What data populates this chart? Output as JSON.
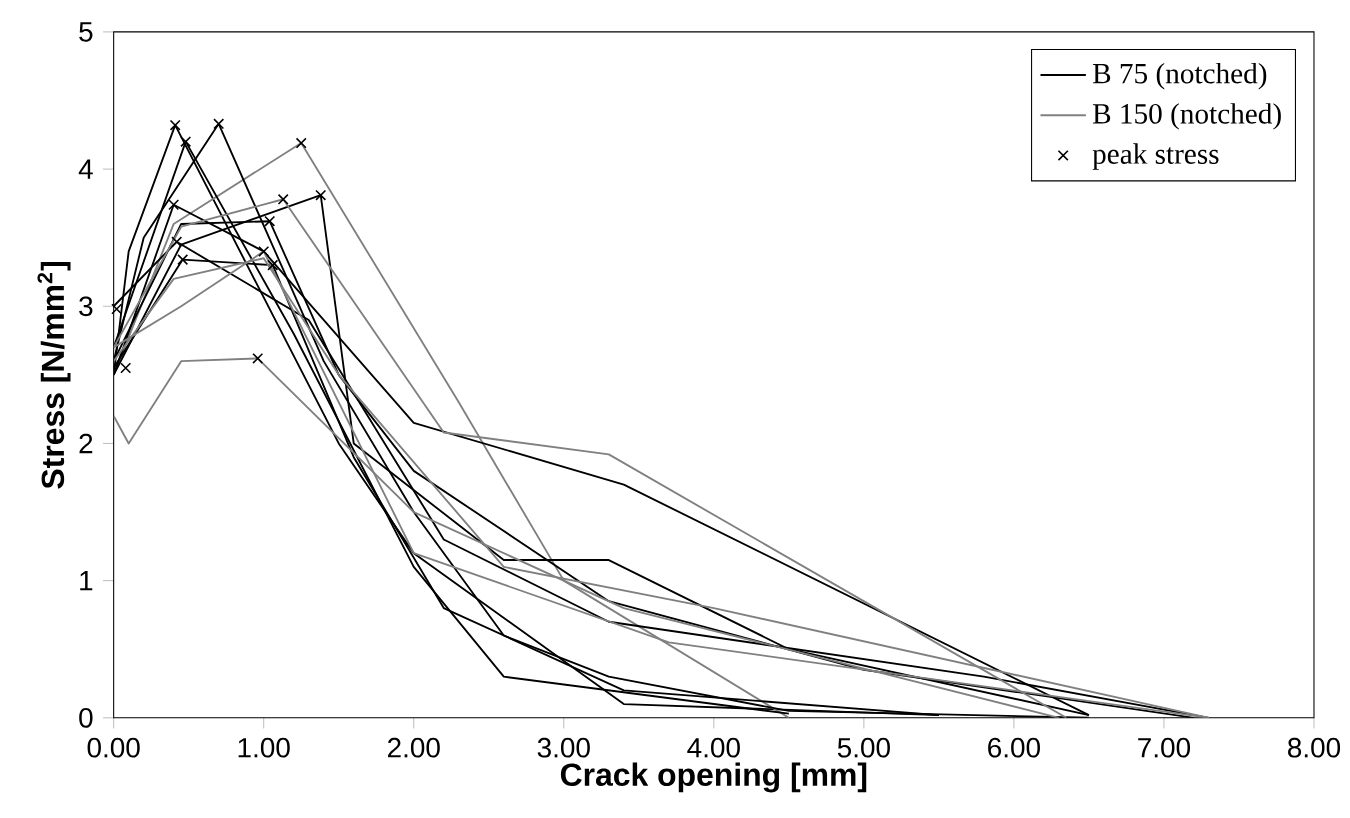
{
  "chart_data": {
    "type": "line",
    "xlabel": "Crack opening [mm]",
    "ylabel": "Stress [N/mm$^{2}$]",
    "xlim": [
      0,
      8
    ],
    "ylim": [
      0,
      5
    ],
    "xticks": [
      {
        "value": 0,
        "label": "0.00"
      },
      {
        "value": 1,
        "label": "1.00"
      },
      {
        "value": 2,
        "label": "2.00"
      },
      {
        "value": 3,
        "label": "3.00"
      },
      {
        "value": 4,
        "label": "4.00"
      },
      {
        "value": 5,
        "label": "5.00"
      },
      {
        "value": 6,
        "label": "6.00"
      },
      {
        "value": 7,
        "label": "7.00"
      },
      {
        "value": 8,
        "label": "8.00"
      }
    ],
    "yticks": [
      0,
      1,
      2,
      3,
      4,
      5
    ],
    "grid": false,
    "legend": "top right",
    "line_style": "solid",
    "series": [
      {
        "name": "B 75 (notched)",
        "color": "#000000",
        "x": [
          0,
          0.1,
          0.41,
          1.5,
          2.0,
          3.4,
          5.5
        ],
        "values": [
          2.5,
          3.4,
          4.32,
          2.0,
          1.2,
          0.1,
          0.02
        ]
      },
      {
        "name": "B 150 (notched)",
        "color": "#808080",
        "x": [
          0,
          0.4,
          1.25,
          2.3,
          3.0,
          4.5
        ],
        "values": [
          2.5,
          3.6,
          4.19,
          2.3,
          1.0,
          0.0
        ]
      },
      {
        "color": "#000000",
        "x": [
          0,
          0.2,
          0.7,
          1.4,
          2.0,
          2.6,
          3.3,
          4.5,
          6.5
        ],
        "values": [
          2.6,
          3.5,
          4.33,
          2.6,
          1.5,
          0.6,
          0.3,
          0.05,
          0.0
        ]
      },
      {
        "color": "#000000",
        "x": [
          0,
          0.48,
          1.2,
          2.0,
          2.6,
          4.5
        ],
        "values": [
          2.7,
          4.2,
          2.8,
          1.1,
          0.3,
          0.03
        ]
      },
      {
        "color": "#000000",
        "x": [
          0,
          0.4,
          1.0,
          2.0,
          3.4,
          6.5
        ],
        "values": [
          2.5,
          3.74,
          3.4,
          2.15,
          1.7,
          0.02
        ]
      },
      {
        "color": "#000000",
        "x": [
          0,
          0.45,
          1.04,
          1.5,
          2.0,
          3.3,
          5.0,
          7.2
        ],
        "values": [
          2.6,
          3.6,
          3.62,
          2.5,
          1.8,
          0.85,
          0.35,
          0.0
        ]
      },
      {
        "color": "#000000",
        "x": [
          0,
          0.45,
          1.38,
          1.6,
          2.6,
          3.3,
          4.5,
          6.5
        ],
        "values": [
          2.5,
          3.45,
          3.81,
          2.0,
          1.15,
          1.15,
          0.5,
          0.02
        ]
      },
      {
        "color": "#000000",
        "x": [
          0,
          0.46,
          1.06,
          1.6,
          2.2,
          3.4,
          5.5
        ],
        "values": [
          2.55,
          3.34,
          3.3,
          1.9,
          0.8,
          0.2,
          0.02
        ]
      },
      {
        "color": "#000000",
        "x": [
          0,
          0.42,
          1.3,
          2.2,
          3.3,
          5.8,
          7.3
        ],
        "values": [
          3.0,
          3.47,
          2.9,
          1.3,
          0.7,
          0.3,
          0.0
        ]
      },
      {
        "color": "#808080",
        "x": [
          0,
          0.45,
          1.13,
          2.2,
          3.3,
          6.35
        ],
        "values": [
          2.7,
          3.58,
          3.78,
          2.08,
          1.92,
          0.0
        ]
      },
      {
        "color": "#808080",
        "x": [
          0,
          0.1,
          0.45,
          0.96,
          2.0,
          3.4,
          6.3
        ],
        "values": [
          2.2,
          2.0,
          2.6,
          2.62,
          1.5,
          0.8,
          0.0
        ]
      },
      {
        "color": "#808080",
        "x": [
          0,
          0.45,
          1.0,
          2.0,
          3.7,
          7.3
        ],
        "values": [
          2.7,
          3.0,
          3.4,
          1.2,
          0.55,
          0.0
        ]
      },
      {
        "color": "#808080",
        "x": [
          0,
          0.4,
          1.0,
          1.5,
          2.6,
          4.0,
          7.3
        ],
        "values": [
          2.6,
          3.2,
          3.35,
          2.5,
          1.1,
          0.8,
          0.0
        ]
      },
      {
        "name": "peak stress",
        "type": "scatter",
        "marker": "cross",
        "color": "#000000",
        "x": [
          0.41,
          0.7,
          0.48,
          1.25,
          1.13,
          1.38,
          0.4,
          1.04,
          1.0,
          1.06,
          0.42,
          0.46,
          0.96,
          0.02,
          0.08
        ],
        "values": [
          4.32,
          4.33,
          4.2,
          4.19,
          3.78,
          3.81,
          3.74,
          3.62,
          3.4,
          3.3,
          3.47,
          3.34,
          2.62,
          2.98,
          2.55
        ]
      }
    ]
  }
}
